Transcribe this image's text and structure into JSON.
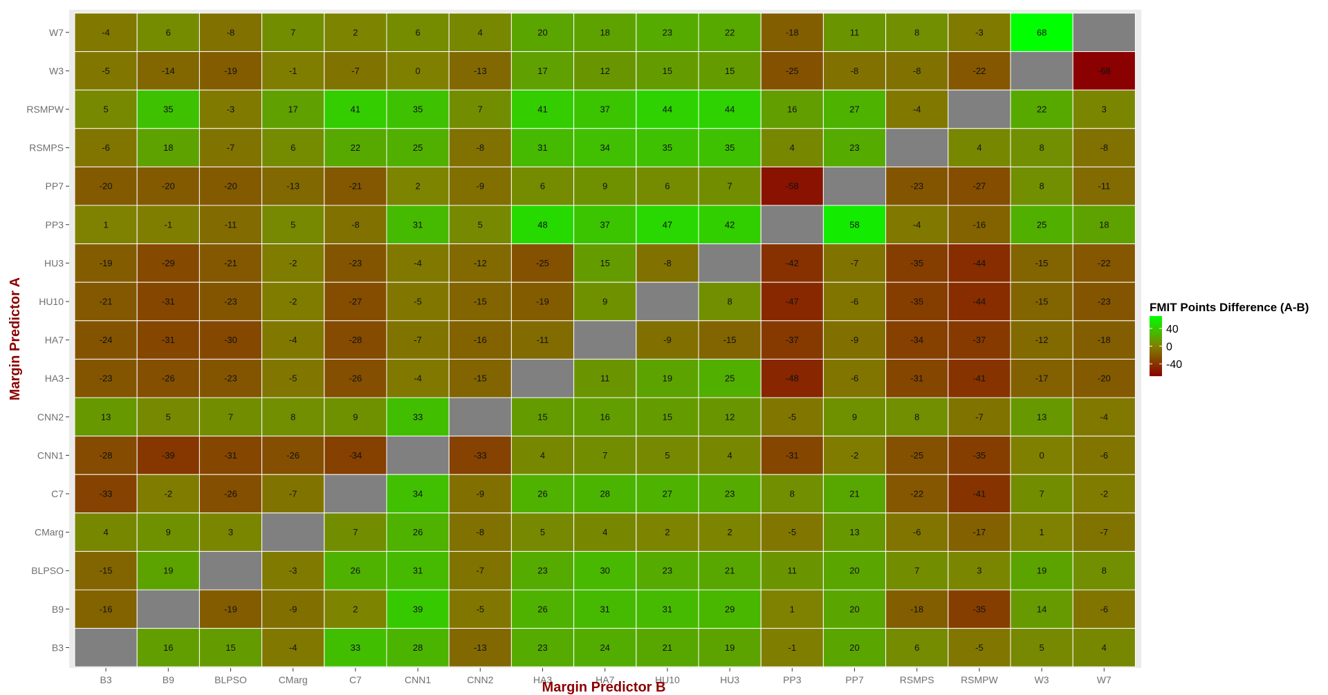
{
  "chart_data": {
    "type": "heatmap",
    "xlabel": "Margin Predictor B",
    "ylabel": "Margin Predictor A",
    "x_categories": [
      "B3",
      "B9",
      "BLPSO",
      "CMarg",
      "C7",
      "CNN1",
      "CNN2",
      "HA3",
      "HA7",
      "HU10",
      "HU3",
      "PP3",
      "PP7",
      "RSMPS",
      "RSMPW",
      "W3",
      "W7"
    ],
    "y_categories": [
      "W7",
      "W3",
      "RSMPW",
      "RSMPS",
      "PP7",
      "PP3",
      "HU3",
      "HU10",
      "HA7",
      "HA3",
      "CNN2",
      "CNN1",
      "C7",
      "CMarg",
      "BLPSO",
      "B9",
      "B3"
    ],
    "values": [
      [
        -4,
        6,
        -8,
        7,
        2,
        6,
        4,
        20,
        18,
        23,
        22,
        -18,
        11,
        8,
        -3,
        68,
        null
      ],
      [
        -5,
        -14,
        -19,
        -1,
        -7,
        0,
        -13,
        17,
        12,
        15,
        15,
        -25,
        -8,
        -8,
        -22,
        null,
        -68
      ],
      [
        5,
        35,
        -3,
        17,
        41,
        35,
        7,
        41,
        37,
        44,
        44,
        16,
        27,
        -4,
        null,
        22,
        3
      ],
      [
        -6,
        18,
        -7,
        6,
        22,
        25,
        -8,
        31,
        34,
        35,
        35,
        4,
        23,
        null,
        4,
        8,
        -8
      ],
      [
        -20,
        -20,
        -20,
        -13,
        -21,
        2,
        -9,
        6,
        9,
        6,
        7,
        -58,
        null,
        -23,
        -27,
        8,
        -11
      ],
      [
        1,
        -1,
        -11,
        5,
        -8,
        31,
        5,
        48,
        37,
        47,
        42,
        null,
        58,
        -4,
        -16,
        25,
        18
      ],
      [
        -19,
        -29,
        -21,
        -2,
        -23,
        -4,
        -12,
        -25,
        15,
        -8,
        null,
        -42,
        -7,
        -35,
        -44,
        -15,
        -22
      ],
      [
        -21,
        -31,
        -23,
        -2,
        -27,
        -5,
        -15,
        -19,
        9,
        null,
        8,
        -47,
        -6,
        -35,
        -44,
        -15,
        -23
      ],
      [
        -24,
        -31,
        -30,
        -4,
        -28,
        -7,
        -16,
        -11,
        null,
        -9,
        -15,
        -37,
        -9,
        -34,
        -37,
        -12,
        -18
      ],
      [
        -23,
        -26,
        -23,
        -5,
        -26,
        -4,
        -15,
        null,
        11,
        19,
        25,
        -48,
        -6,
        -31,
        -41,
        -17,
        -20
      ],
      [
        13,
        5,
        7,
        8,
        9,
        33,
        null,
        15,
        16,
        15,
        12,
        -5,
        9,
        8,
        -7,
        13,
        -4
      ],
      [
        -28,
        -39,
        -31,
        -26,
        -34,
        null,
        -33,
        4,
        7,
        5,
        4,
        -31,
        -2,
        -25,
        -35,
        0,
        -6
      ],
      [
        -33,
        -2,
        -26,
        -7,
        null,
        34,
        -9,
        26,
        28,
        27,
        23,
        8,
        21,
        -22,
        -41,
        7,
        -2
      ],
      [
        4,
        9,
        3,
        null,
        7,
        26,
        -8,
        5,
        4,
        2,
        2,
        -5,
        13,
        -6,
        -17,
        1,
        -7
      ],
      [
        -15,
        19,
        null,
        -3,
        26,
        31,
        -7,
        23,
        30,
        23,
        21,
        11,
        20,
        7,
        3,
        19,
        8
      ],
      [
        -16,
        null,
        -19,
        -9,
        2,
        39,
        -5,
        26,
        31,
        31,
        29,
        1,
        20,
        -18,
        -35,
        14,
        -6
      ],
      [
        null,
        16,
        15,
        -4,
        33,
        28,
        -13,
        23,
        24,
        21,
        19,
        -1,
        20,
        6,
        -5,
        5,
        4
      ]
    ],
    "legend": {
      "title": "FMIT Points Difference (A-B)",
      "ticks": [
        40,
        0,
        -40
      ],
      "range": [
        -68,
        68
      ],
      "placement": "right"
    },
    "colors": {
      "high": "#00ff00",
      "mid": "#808000",
      "low": "#8b0000",
      "na": "#808080",
      "panel": "#ebebeb",
      "gridline": "#ffffff"
    }
  }
}
